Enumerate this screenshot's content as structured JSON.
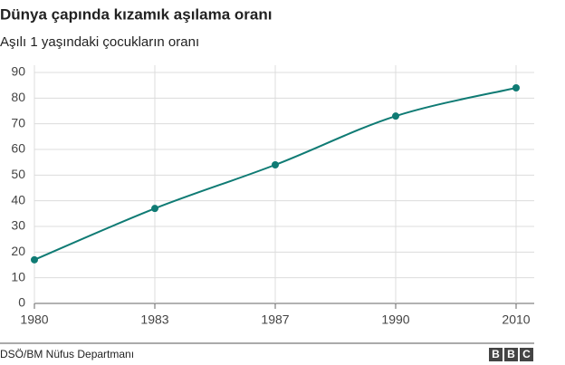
{
  "chart_data": {
    "type": "line",
    "title": "Dünya çapında kızamık aşılama oranı",
    "subtitle": "Aşılı 1 yaşındaki çocukların oranı",
    "categories": [
      "1980",
      "1983",
      "1987",
      "1990",
      "2010"
    ],
    "values": [
      17,
      37,
      54,
      73,
      84
    ],
    "color": "#0f7b74",
    "ylim": [
      0,
      90
    ],
    "yticks": [
      0,
      10,
      20,
      30,
      40,
      50,
      60,
      70,
      80,
      90
    ],
    "grid": true,
    "source": "DSÖ/BM Nüfus Departmanı",
    "logo": [
      "B",
      "B",
      "C"
    ]
  }
}
